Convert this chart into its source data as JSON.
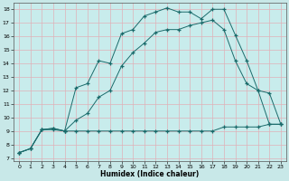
{
  "xlabel": "Humidex (Indice chaleur)",
  "bg_color": "#c8e8e8",
  "plot_bg_color": "#c8ecec",
  "grid_color": "#e0b0b8",
  "line_color": "#1a6b6b",
  "xlim": [
    -0.5,
    23.5
  ],
  "ylim": [
    6.8,
    18.5
  ],
  "xticks": [
    0,
    1,
    2,
    3,
    4,
    5,
    6,
    7,
    8,
    9,
    10,
    11,
    12,
    13,
    14,
    15,
    16,
    17,
    18,
    19,
    20,
    21,
    22,
    23
  ],
  "yticks": [
    7,
    8,
    9,
    10,
    11,
    12,
    13,
    14,
    15,
    16,
    17,
    18
  ],
  "line1_x": [
    0,
    1,
    2,
    3,
    4,
    5,
    6,
    7,
    8,
    9,
    10,
    11,
    12,
    13,
    14,
    15,
    16,
    17,
    18,
    19,
    20,
    21,
    22,
    23
  ],
  "line1_y": [
    7.4,
    7.7,
    9.1,
    9.1,
    9.0,
    9.0,
    9.0,
    9.0,
    9.0,
    9.0,
    9.0,
    9.0,
    9.0,
    9.0,
    9.0,
    9.0,
    9.0,
    9.0,
    9.3,
    9.3,
    9.3,
    9.3,
    9.5,
    9.5
  ],
  "line2_x": [
    0,
    1,
    2,
    3,
    4,
    5,
    6,
    7,
    8,
    9,
    10,
    11,
    12,
    13,
    14,
    15,
    16,
    17,
    18,
    19,
    20,
    21,
    22,
    23
  ],
  "line2_y": [
    7.4,
    7.7,
    9.1,
    9.2,
    9.0,
    12.2,
    12.5,
    14.2,
    14.0,
    16.2,
    16.5,
    17.5,
    17.8,
    18.1,
    17.8,
    17.8,
    17.3,
    18.0,
    18.0,
    16.1,
    14.2,
    12.0,
    11.8,
    9.5
  ],
  "line3_x": [
    0,
    1,
    2,
    3,
    4,
    5,
    6,
    7,
    8,
    9,
    10,
    11,
    12,
    13,
    14,
    15,
    16,
    17,
    18,
    19,
    20,
    21,
    22,
    23
  ],
  "line3_y": [
    7.4,
    7.7,
    9.1,
    9.2,
    9.0,
    9.8,
    10.3,
    11.5,
    12.0,
    13.8,
    14.8,
    15.5,
    16.3,
    16.5,
    16.5,
    16.8,
    17.0,
    17.2,
    16.5,
    14.2,
    12.5,
    12.0,
    9.5,
    9.5
  ]
}
